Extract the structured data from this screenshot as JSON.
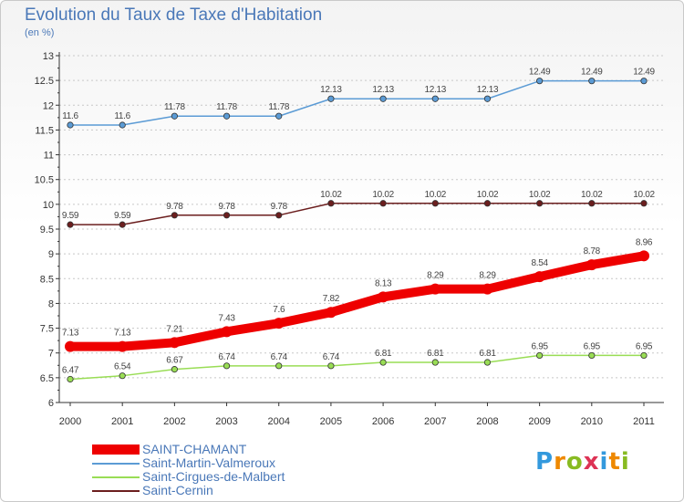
{
  "chart_data": {
    "type": "line",
    "title": "Evolution du Taux de Taxe d'Habitation",
    "subtitle": "(en %)",
    "xlabel": "",
    "ylabel": "",
    "categories": [
      "2000",
      "2001",
      "2002",
      "2003",
      "2004",
      "2005",
      "2006",
      "2007",
      "2008",
      "2009",
      "2010",
      "2011"
    ],
    "ylim": [
      6,
      13
    ],
    "yticks": [
      "6",
      "6.5",
      "7",
      "7.5",
      "8",
      "8.5",
      "9",
      "9.5",
      "10",
      "10.5",
      "11",
      "11.5",
      "12",
      "12.5",
      "13"
    ],
    "grid": "horizontal dashed",
    "series": [
      {
        "name": "SAINT-CHAMANT",
        "color": "#ee0000",
        "emphasis": "bold",
        "values": [
          7.13,
          7.13,
          7.21,
          7.43,
          7.6,
          7.82,
          8.13,
          8.29,
          8.29,
          8.54,
          8.78,
          8.96
        ],
        "labels": [
          "7.13",
          "7.13",
          "7.21",
          "7.43",
          "7.6",
          "7.82",
          "8.13",
          "8.29",
          "8.29",
          "8.54",
          "8.78",
          "8.96"
        ]
      },
      {
        "name": "Saint-Martin-Valmeroux",
        "color": "#5b9bd5",
        "values": [
          11.6,
          11.6,
          11.78,
          11.78,
          11.78,
          12.13,
          12.13,
          12.13,
          12.13,
          12.49,
          12.49,
          12.49
        ],
        "labels": [
          "11.6",
          "11.6",
          "11.78",
          "11.78",
          "11.78",
          "12.13",
          "12.13",
          "12.13",
          "12.13",
          "12.49",
          "12.49",
          "12.49"
        ]
      },
      {
        "name": "Saint-Cirgues-de-Malbert",
        "color": "#99dd55",
        "values": [
          6.47,
          6.54,
          6.67,
          6.74,
          6.74,
          6.74,
          6.81,
          6.81,
          6.81,
          6.95,
          6.95,
          6.95
        ],
        "labels": [
          "6.47",
          "6.54",
          "6.67",
          "6.74",
          "6.74",
          "6.74",
          "6.81",
          "6.81",
          "6.81",
          "6.95",
          "6.95",
          "6.95"
        ]
      },
      {
        "name": "Saint-Cernin",
        "color": "#6b1e1e",
        "values": [
          9.59,
          9.59,
          9.78,
          9.78,
          9.78,
          10.02,
          10.02,
          10.02,
          10.02,
          10.02,
          10.02,
          10.02
        ],
        "labels": [
          "9.59",
          "9.59",
          "9.78",
          "9.78",
          "9.78",
          "10.02",
          "10.02",
          "10.02",
          "10.02",
          "10.02",
          "10.02",
          "10.02"
        ]
      }
    ],
    "legend": "bottom-left"
  },
  "logo": {
    "letters": [
      "P",
      "r",
      "o",
      "x",
      "i",
      "t",
      "i"
    ],
    "colors": [
      "#3399dd",
      "#ee8800",
      "#88bb22",
      "#dd3355",
      "#3399dd",
      "#ee8800",
      "#88bb22"
    ]
  }
}
